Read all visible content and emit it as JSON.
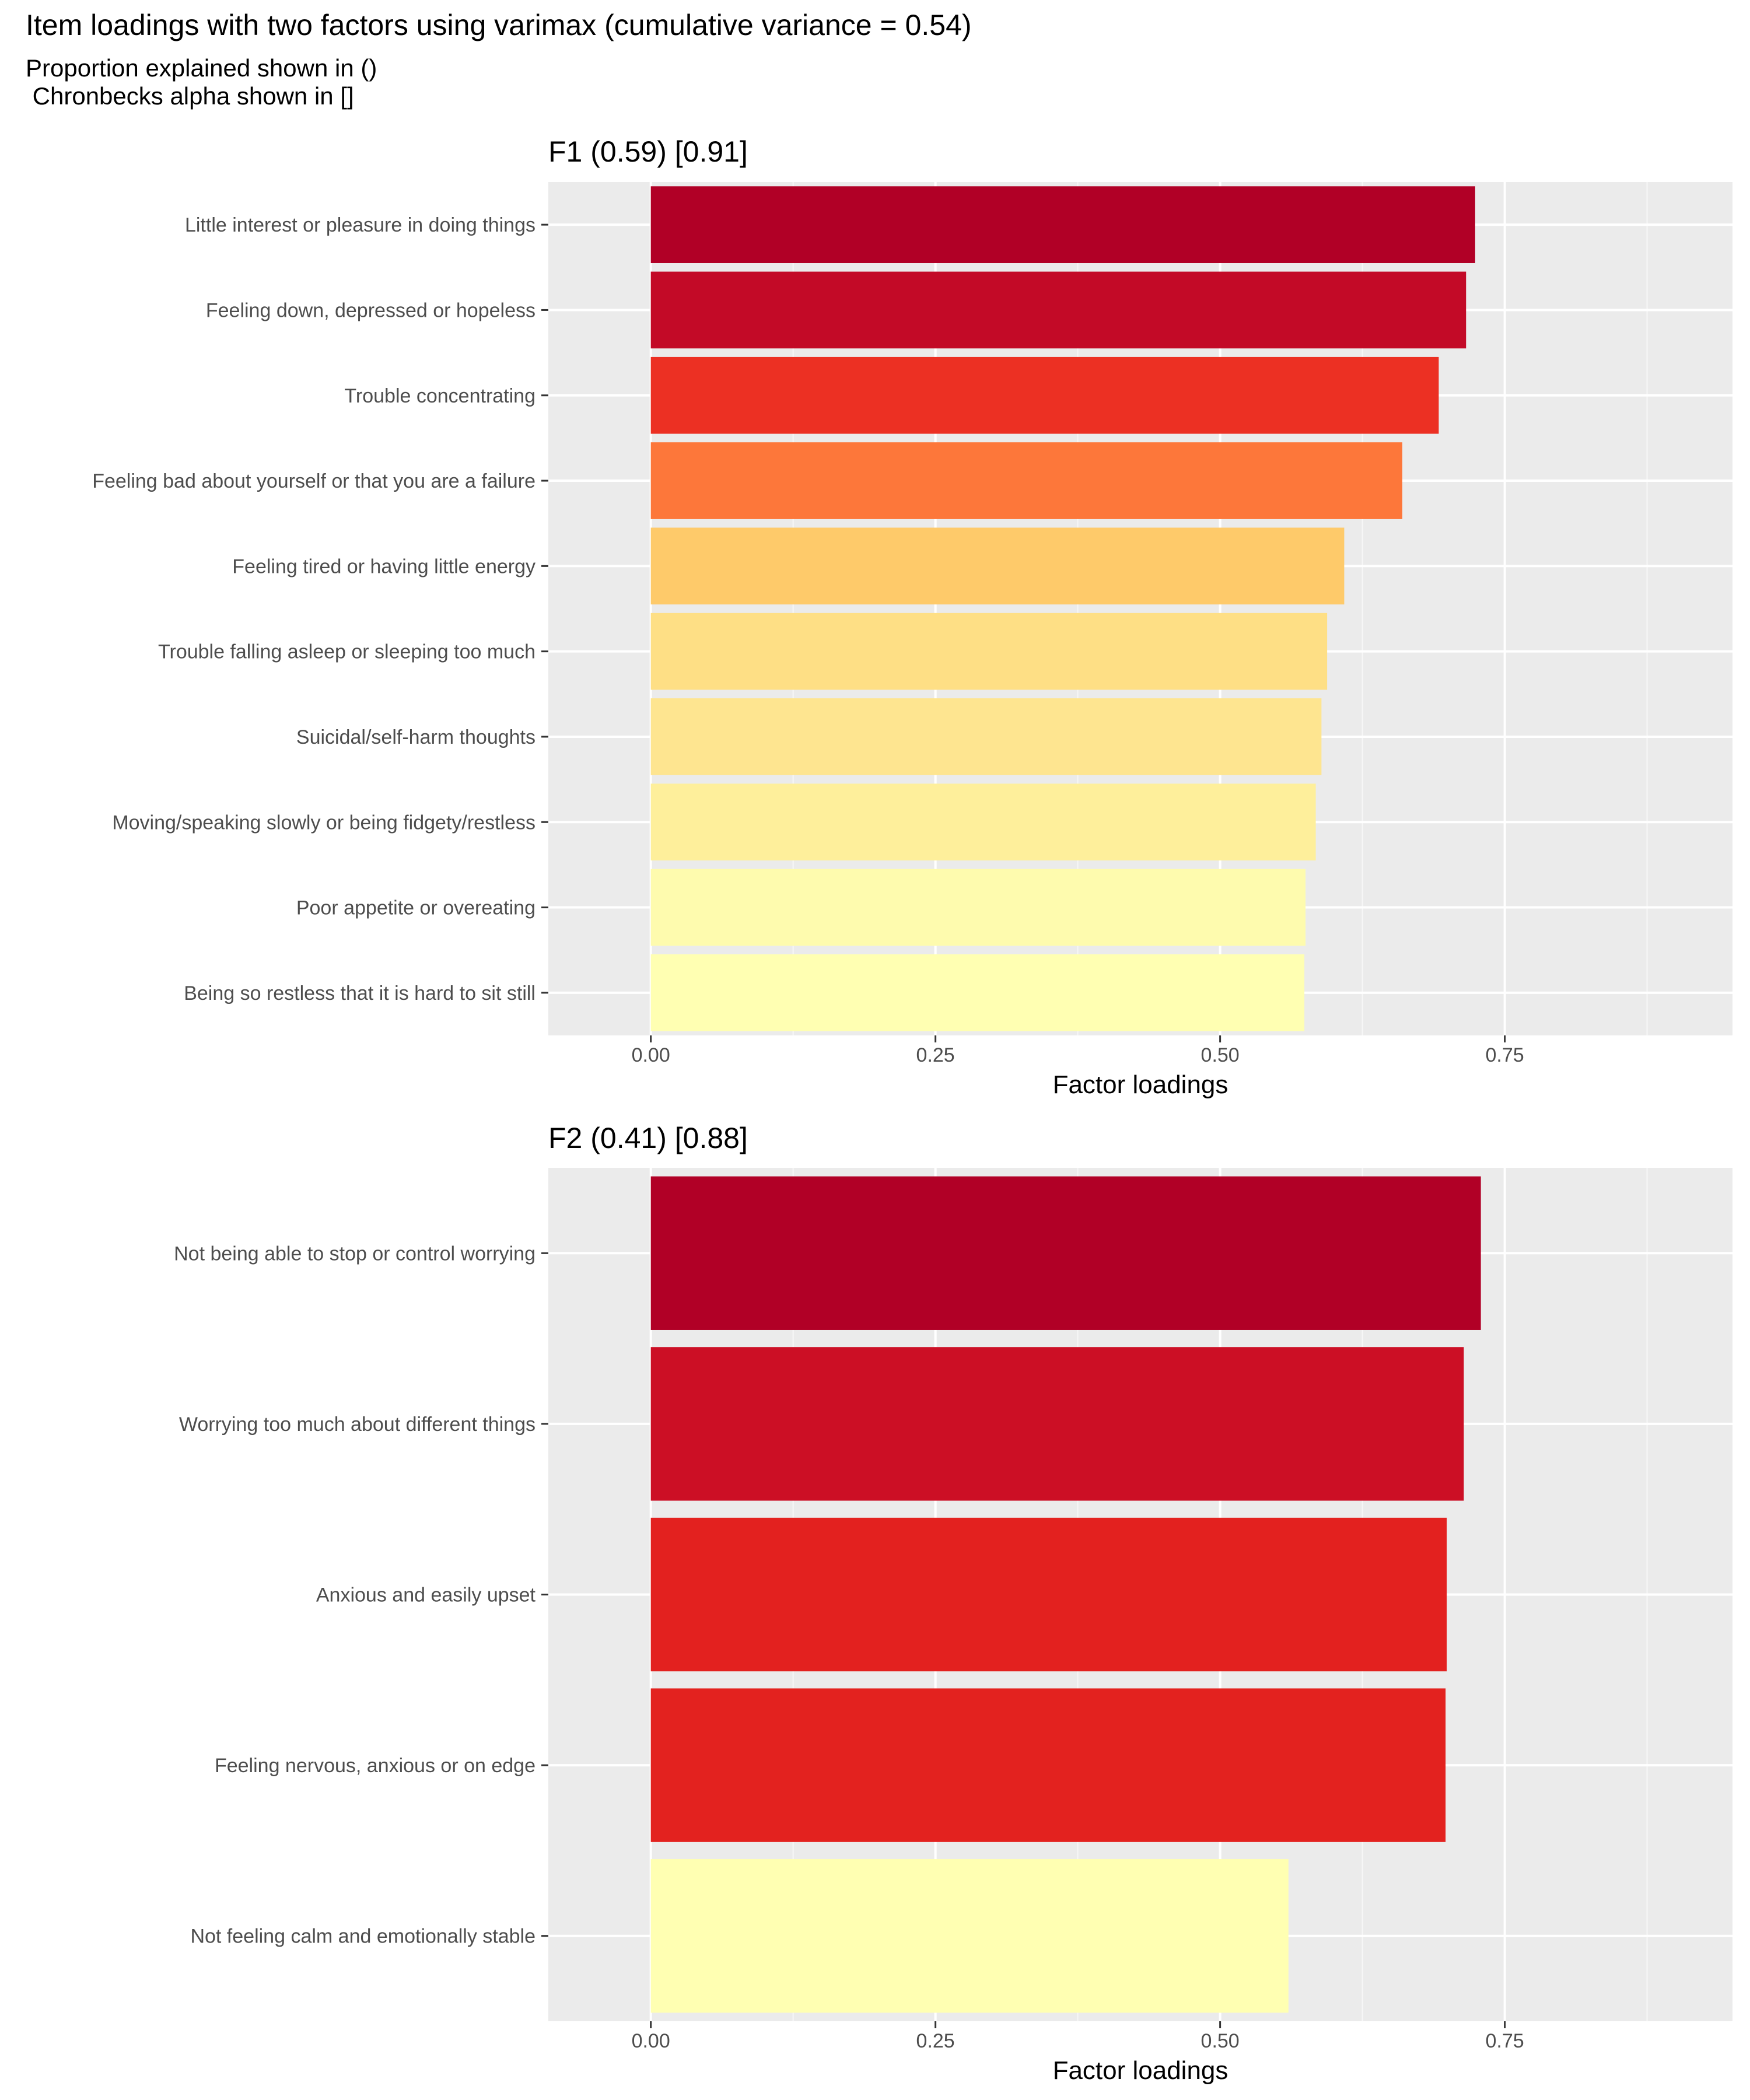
{
  "title": "Item loadings with two factors using varimax (cumulative variance = 0.54)",
  "subtitle_line1": "Proportion explained shown in ()",
  "subtitle_line2": " Chronbecks alpha shown in []",
  "chart_data": [
    {
      "type": "bar",
      "orientation": "horizontal",
      "title": "F1 (0.59) [0.91]",
      "xlabel": "Factor loadings",
      "ylabel": "",
      "xlim": [
        -0.09,
        0.95
      ],
      "xticks": [
        "0.00",
        "0.25",
        "0.50",
        "0.75"
      ],
      "grid": true,
      "categories": [
        "Little interest or pleasure in doing things",
        "Feeling down, depressed or hopeless",
        "Trouble concentrating",
        "Feeling bad about yourself or that you are a failure",
        "Feeling tired or having little energy",
        "Trouble falling asleep or sleeping too much",
        "Suicidal/self-harm thoughts",
        "Moving/speaking slowly or being fidgety/restless",
        "Poor appetite or overeating",
        "Being so restless that it is hard to sit still"
      ],
      "values": [
        0.724,
        0.716,
        0.692,
        0.66,
        0.609,
        0.594,
        0.589,
        0.584,
        0.575,
        0.574
      ],
      "colors": [
        "#b10026",
        "#c30a27",
        "#ec3023",
        "#fd773a",
        "#feca6a",
        "#fedf85",
        "#fee590",
        "#feef9b",
        "#fefbae",
        "#ffffb2"
      ]
    },
    {
      "type": "bar",
      "orientation": "horizontal",
      "title": "F2 (0.41) [0.88]",
      "xlabel": "Factor loadings",
      "ylabel": "",
      "xlim": [
        -0.09,
        0.95
      ],
      "xticks": [
        "0.00",
        "0.25",
        "0.50",
        "0.75"
      ],
      "grid": true,
      "categories": [
        "Not being able to stop or control worrying",
        "Worrying too much about different things",
        "Anxious and easily upset",
        "Feeling nervous, anxious or on edge",
        "Not feeling calm and emotionally stable"
      ],
      "values": [
        0.729,
        0.714,
        0.699,
        0.698,
        0.56
      ],
      "colors": [
        "#b10026",
        "#cc0f25",
        "#e3211f",
        "#e3221f",
        "#ffffb2"
      ]
    }
  ]
}
